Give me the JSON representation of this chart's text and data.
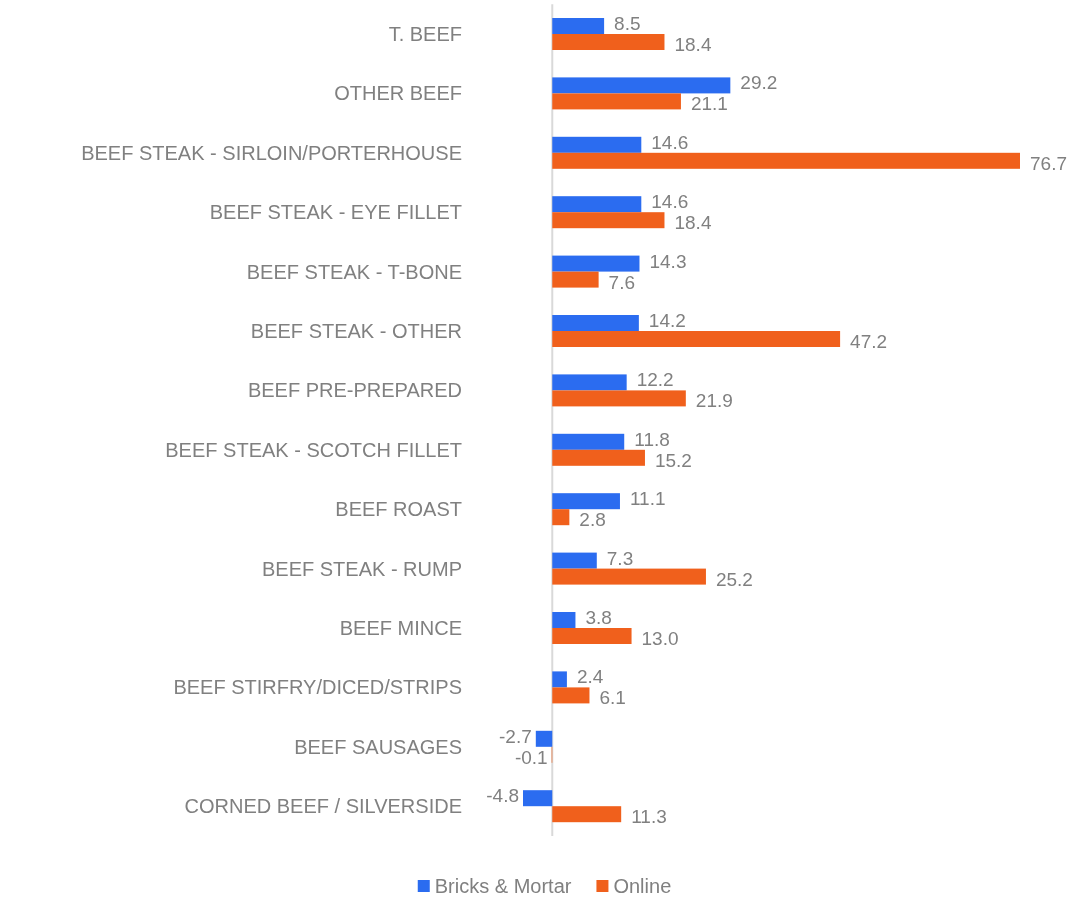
{
  "chart_data": {
    "type": "bar",
    "orientation": "horizontal",
    "categories": [
      "T. BEEF",
      "OTHER BEEF",
      "BEEF STEAK - SIRLOIN/PORTERHOUSE",
      "BEEF STEAK - EYE FILLET",
      "BEEF STEAK - T-BONE",
      "BEEF STEAK - OTHER",
      "BEEF PRE-PREPARED",
      "BEEF STEAK - SCOTCH FILLET",
      "BEEF ROAST",
      "BEEF STEAK - RUMP",
      "BEEF MINCE",
      "BEEF STIRFRY/DICED/STRIPS",
      "BEEF SAUSAGES",
      "CORNED BEEF / SILVERSIDE"
    ],
    "series": [
      {
        "name": "Bricks & Mortar",
        "color": "#2b6cf0",
        "values": [
          8.5,
          29.2,
          14.6,
          14.6,
          14.3,
          14.2,
          12.2,
          11.8,
          11.1,
          7.3,
          3.8,
          2.4,
          -2.7,
          -4.8
        ],
        "value_labels": [
          "8.5",
          "29.2",
          "14.6",
          "14.6",
          "14.3",
          "14.2",
          "12.2",
          "11.8",
          "11.1",
          "7.3",
          "3.8",
          "2.4",
          "-2.7",
          "-4.8"
        ]
      },
      {
        "name": "Online",
        "color": "#f0601c",
        "values": [
          18.4,
          21.1,
          76.7,
          18.4,
          7.6,
          47.2,
          21.9,
          15.2,
          2.8,
          25.2,
          13.0,
          6.1,
          -0.1,
          11.3
        ],
        "value_labels": [
          "18.4",
          "21.1",
          "76.7",
          "18.4",
          "7.6",
          "47.2",
          "21.9",
          "15.2",
          "2.8",
          "25.2",
          "13.0",
          "6.1",
          "-0.1",
          "11.3"
        ]
      }
    ],
    "legend": "bottom",
    "tick_labels": "y"
  }
}
